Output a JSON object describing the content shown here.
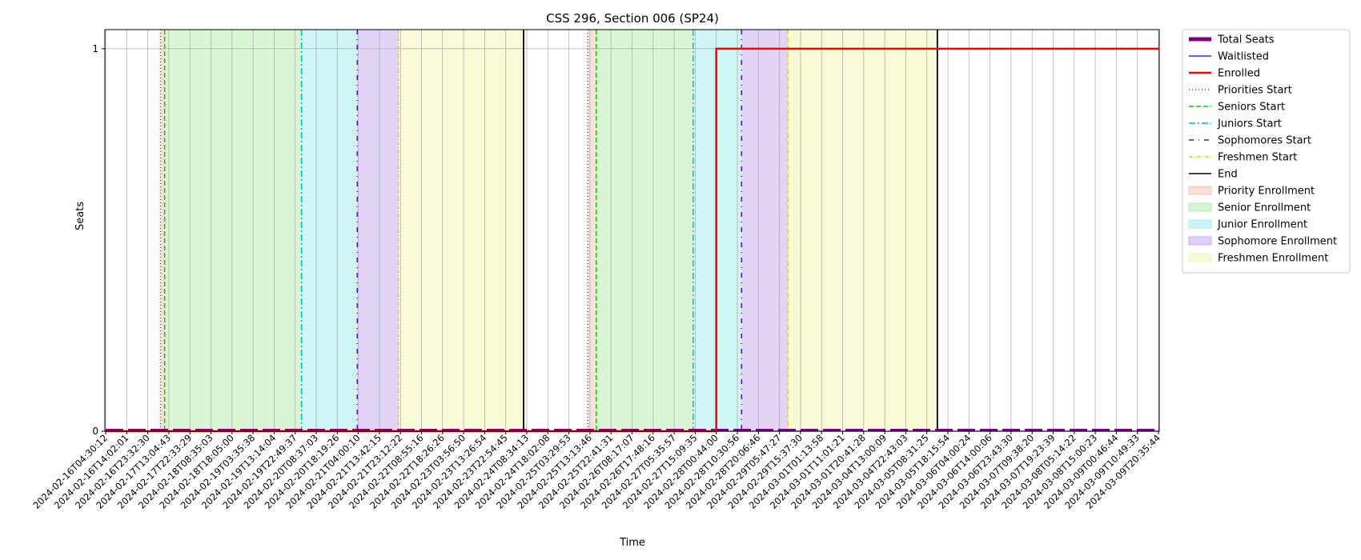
{
  "chart_data": {
    "type": "line",
    "title": "CSS 296, Section 006 (SP24)",
    "xlabel": "Time",
    "ylabel": "Seats",
    "ylim": [
      0,
      1.05
    ],
    "yticks": [
      0,
      1
    ],
    "grid": true,
    "legend_position": "outside-top-right",
    "x": [
      "2024-02-16T04:30:12",
      "2024-02-16T14:02:01",
      "2024-02-16T23:32:30",
      "2024-02-17T13:04:43",
      "2024-02-17T22:33:29",
      "2024-02-18T08:35:03",
      "2024-02-18T18:05:00",
      "2024-02-19T03:35:38",
      "2024-02-19T13:14:04",
      "2024-02-19T22:49:37",
      "2024-02-20T08:37:03",
      "2024-02-20T18:19:26",
      "2024-02-21T04:00:10",
      "2024-02-21T13:42:15",
      "2024-02-21T23:12:22",
      "2024-02-22T08:55:16",
      "2024-02-22T18:26:26",
      "2024-02-23T03:56:50",
      "2024-02-23T13:26:54",
      "2024-02-23T22:54:45",
      "2024-02-24T08:34:13",
      "2024-02-24T18:02:08",
      "2024-02-25T03:29:53",
      "2024-02-25T13:13:46",
      "2024-02-25T22:41:31",
      "2024-02-26T08:17:07",
      "2024-02-26T17:48:16",
      "2024-02-27T05:35:57",
      "2024-02-27T15:09:35",
      "2024-02-28T00:44:00",
      "2024-02-28T10:30:56",
      "2024-02-28T20:06:46",
      "2024-02-29T05:47:27",
      "2024-02-29T15:37:30",
      "2024-03-01T01:13:58",
      "2024-03-01T11:01:21",
      "2024-03-01T20:41:28",
      "2024-03-04T13:00:09",
      "2024-03-04T22:43:03",
      "2024-03-05T08:31:25",
      "2024-03-05T18:15:54",
      "2024-03-06T04:00:24",
      "2024-03-06T14:00:06",
      "2024-03-06T23:43:30",
      "2024-03-07T09:38:20",
      "2024-03-07T19:23:39",
      "2024-03-08T05:14:22",
      "2024-03-08T15:00:23",
      "2024-03-09T00:46:44",
      "2024-03-09T10:49:33",
      "2024-03-09T20:35:44"
    ],
    "series": [
      {
        "name": "Total Seats",
        "color": "#800080",
        "style": "thick-dashed",
        "values": [
          0,
          0,
          0,
          0,
          0,
          0,
          0,
          0,
          0,
          0,
          0,
          0,
          0,
          0,
          0,
          0,
          0,
          0,
          0,
          0,
          0,
          0,
          0,
          0,
          0,
          0,
          0,
          0,
          0,
          0,
          0,
          0,
          0,
          0,
          0,
          0,
          0,
          0,
          0,
          0,
          0,
          0,
          0,
          0,
          0,
          0,
          0,
          0,
          0,
          0,
          0
        ]
      },
      {
        "name": "Waitlisted",
        "color": "#0000ff",
        "style": "solid",
        "values": [
          0,
          0,
          0,
          0,
          0,
          0,
          0,
          0,
          0,
          0,
          0,
          0,
          0,
          0,
          0,
          0,
          0,
          0,
          0,
          0,
          0,
          0,
          0,
          0,
          0,
          0,
          0,
          0,
          0,
          0,
          0,
          0,
          0,
          0,
          0,
          0,
          0,
          0,
          0,
          0,
          0,
          0,
          0,
          0,
          0,
          0,
          0,
          0,
          0,
          0,
          0
        ]
      },
      {
        "name": "Enrolled",
        "color": "#ff0000",
        "style": "step",
        "values": [
          0,
          0,
          0,
          0,
          0,
          0,
          0,
          0,
          0,
          0,
          0,
          0,
          0,
          0,
          0,
          0,
          0,
          0,
          0,
          0,
          0,
          0,
          0,
          0,
          0,
          0,
          0,
          0,
          0,
          1,
          1,
          1,
          1,
          1,
          1,
          1,
          1,
          1,
          1,
          1,
          1,
          1,
          1,
          1,
          1,
          1,
          1,
          1,
          1,
          1,
          1
        ]
      }
    ],
    "phase_markers": [
      {
        "name": "Priorities Start",
        "color": "#ff0000",
        "dash": "1,3",
        "positions": [
          2.6,
          22.9
        ]
      },
      {
        "name": "Seniors Start",
        "color": "#00cc00",
        "dash": "6,3",
        "positions": [
          2.8,
          23.3
        ]
      },
      {
        "name": "Juniors Start",
        "color": "#00bfbf",
        "dash": "8,3,2,3",
        "positions": [
          9.3,
          27.9
        ]
      },
      {
        "name": "Sophomores Start",
        "color": "#6600cc",
        "dash": "6,6,1,6",
        "positions": [
          11.95,
          30.2
        ]
      },
      {
        "name": "Freshmen Start",
        "color": "#e5d000",
        "dash": "5,2,1,2",
        "positions": [
          13.9,
          32.4
        ]
      },
      {
        "name": "End",
        "color": "#000000",
        "dash": "",
        "positions": [
          19.85,
          39.5
        ]
      }
    ],
    "bands": [
      {
        "name": "Priority Enrollment",
        "color": "#f5c6b4",
        "ranges": [
          [
            2.6,
            2.8
          ],
          [
            22.9,
            23.3
          ]
        ]
      },
      {
        "name": "Senior Enrollment",
        "color": "#b8ecb0",
        "ranges": [
          [
            2.8,
            9.3
          ],
          [
            23.3,
            27.9
          ]
        ]
      },
      {
        "name": "Junior Enrollment",
        "color": "#a8ecec",
        "ranges": [
          [
            9.3,
            11.95
          ],
          [
            27.9,
            30.2
          ]
        ]
      },
      {
        "name": "Sophomore Enrollment",
        "color": "#c8b0ec",
        "ranges": [
          [
            11.95,
            13.9
          ],
          [
            30.2,
            32.4
          ]
        ]
      },
      {
        "name": "Freshmen Enrollment",
        "color": "#f2f5b8",
        "ranges": [
          [
            13.9,
            19.85
          ],
          [
            32.4,
            39.5
          ]
        ]
      }
    ]
  }
}
